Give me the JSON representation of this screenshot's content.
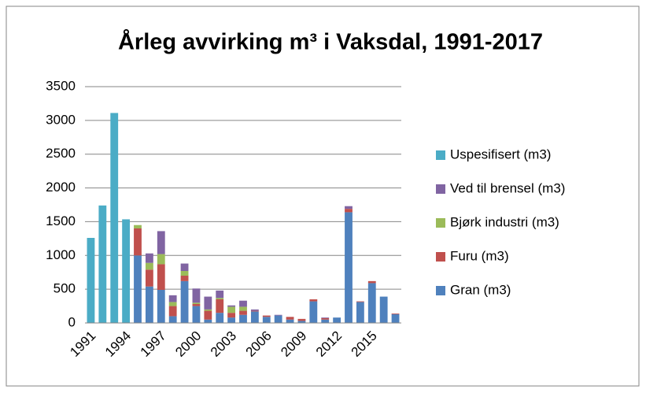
{
  "chart_data": {
    "type": "bar",
    "stacked": true,
    "title": "Årleg avvirking m³ i Vaksdal, 1991-2017",
    "categories": [
      "1991",
      null,
      null,
      "1994",
      null,
      null,
      "1997",
      null,
      null,
      "2000",
      null,
      null,
      "2003",
      null,
      null,
      "2006",
      null,
      null,
      "2009",
      null,
      null,
      "2012",
      null,
      null,
      "2015",
      null,
      null
    ],
    "series": [
      {
        "name": "Gran (m3)",
        "color": "#4f81bd",
        "values": [
          0,
          0,
          0,
          0,
          1000,
          540,
          490,
          100,
          620,
          250,
          50,
          150,
          80,
          120,
          170,
          90,
          110,
          50,
          30,
          320,
          50,
          80,
          1640,
          310,
          590,
          390,
          130
        ]
      },
      {
        "name": "Furu (m3)",
        "color": "#c0504d",
        "values": [
          0,
          0,
          0,
          0,
          400,
          250,
          380,
          150,
          80,
          30,
          130,
          200,
          70,
          60,
          10,
          20,
          0,
          40,
          30,
          30,
          20,
          0,
          50,
          10,
          30,
          0,
          10
        ]
      },
      {
        "name": "Bjørk industri (m3)",
        "color": "#9bbb59",
        "values": [
          0,
          0,
          0,
          0,
          50,
          100,
          150,
          60,
          70,
          20,
          20,
          20,
          90,
          60,
          0,
          0,
          0,
          0,
          0,
          0,
          0,
          0,
          0,
          0,
          0,
          0,
          0
        ]
      },
      {
        "name": "Ved til brensel (m3)",
        "color": "#8064a2",
        "values": [
          0,
          0,
          0,
          0,
          0,
          140,
          340,
          100,
          110,
          210,
          190,
          110,
          20,
          90,
          20,
          0,
          10,
          0,
          0,
          0,
          10,
          0,
          40,
          0,
          0,
          0,
          0
        ]
      },
      {
        "name": "Uspesifisert (m3)",
        "color": "#4bacc6",
        "values": [
          1260,
          1740,
          3110,
          1535,
          0,
          0,
          0,
          0,
          0,
          0,
          0,
          0,
          0,
          0,
          0,
          0,
          0,
          0,
          0,
          0,
          0,
          0,
          0,
          0,
          0,
          0,
          0
        ]
      }
    ],
    "ylim": [
      0,
      3500
    ],
    "yticks": [
      0,
      500,
      1000,
      1500,
      2000,
      2500,
      3000,
      3500
    ],
    "grid": true,
    "legend": "right"
  }
}
